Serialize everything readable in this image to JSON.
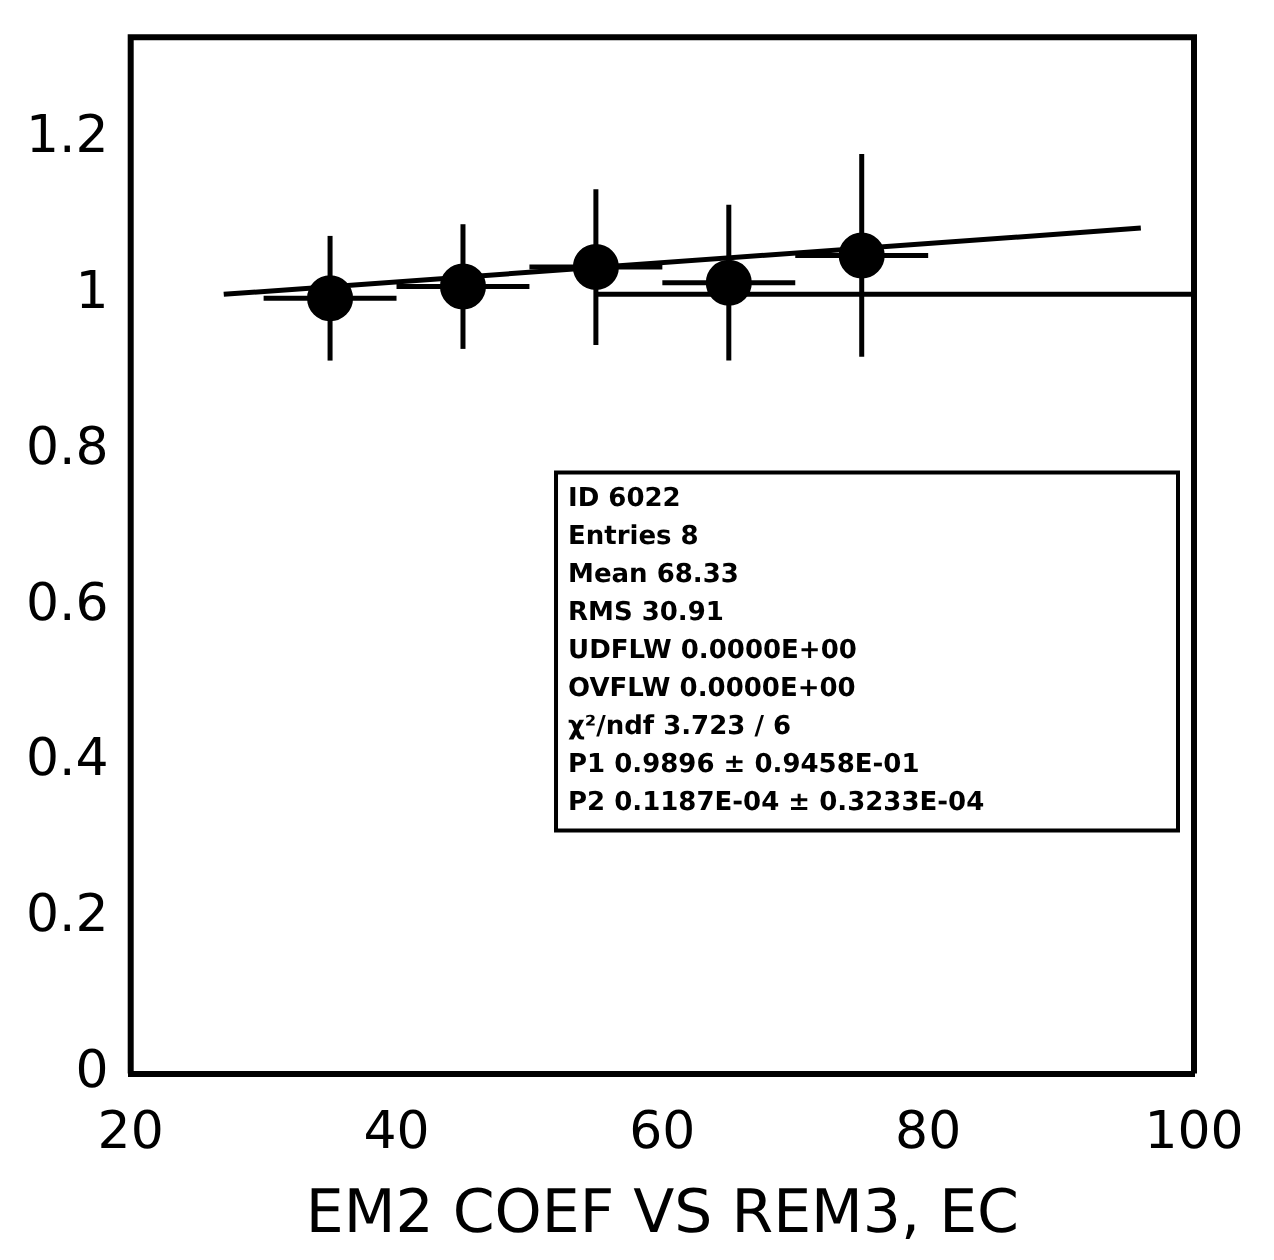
{
  "chart_data": {
    "type": "scatter",
    "xlabel": "EM2 COEF VS REM3, EC",
    "series": [
      {
        "color": "#000000",
        "marker": "circle",
        "x": [
          35,
          45,
          55,
          65,
          75
        ],
        "values": [
          0.995,
          1.01,
          1.035,
          1.015,
          1.05
        ],
        "errors": [
          0.08,
          0.08,
          0.1,
          0.1,
          0.13
        ],
        "xerrors": [
          5,
          5,
          5,
          5,
          5
        ]
      },
      {
        "type": "line",
        "color": "#000000",
        "x": [
          27,
          96
        ],
        "values": [
          1.0,
          1.085
        ]
      },
      {
        "type": "line",
        "color": "#000000",
        "x": [
          55,
          100
        ],
        "values": [
          1.0,
          1.0
        ]
      }
    ],
    "xlim": [
      20,
      100
    ],
    "xticks": [
      20,
      40,
      60,
      80,
      100
    ],
    "ylim": [
      0,
      1.33
    ],
    "yticks": [
      0,
      0.2,
      0.4,
      0.6,
      0.8,
      1,
      1.2
    ],
    "grid": false,
    "legend": false,
    "annotations": [
      "ID 6022",
      "Entries 8",
      "Mean 68.33",
      "RMS 30.91",
      "UDFLW 0.0000E+00",
      "OVFLW 0.0000E+00",
      "χ²/ndf 3.723 / 6",
      "P1 0.9896 ± 0.9458E-01",
      "P2 0.1187E-04 ± 0.3233E-04"
    ]
  }
}
